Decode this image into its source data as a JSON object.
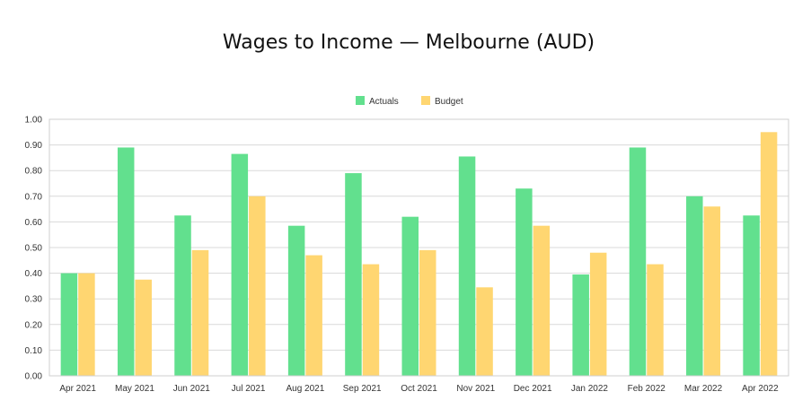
{
  "chart_data": {
    "type": "bar",
    "title": "Wages to Income — Melbourne (AUD)",
    "xlabel": "",
    "ylabel": "",
    "ylim": [
      0,
      1
    ],
    "yticks": [
      "0.00",
      "0.10",
      "0.20",
      "0.30",
      "0.40",
      "0.50",
      "0.60",
      "0.70",
      "0.80",
      "0.90",
      "1.00"
    ],
    "grid": true,
    "legend_position": "top-center",
    "categories": [
      "Apr 2021",
      "May 2021",
      "Jun 2021",
      "Jul 2021",
      "Aug 2021",
      "Sep 2021",
      "Oct 2021",
      "Nov 2021",
      "Dec 2021",
      "Jan 2022",
      "Feb 2022",
      "Mar 2022",
      "Apr 2022"
    ],
    "series": [
      {
        "name": "Actuals",
        "color": "#62e08e",
        "values": [
          0.4,
          0.89,
          0.625,
          0.865,
          0.585,
          0.79,
          0.62,
          0.855,
          0.73,
          0.395,
          0.89,
          0.7,
          0.625
        ]
      },
      {
        "name": "Budget",
        "color": "#ffd671",
        "values": [
          0.4,
          0.375,
          0.49,
          0.7,
          0.47,
          0.435,
          0.49,
          0.345,
          0.585,
          0.48,
          0.435,
          0.66,
          0.95
        ]
      }
    ]
  }
}
